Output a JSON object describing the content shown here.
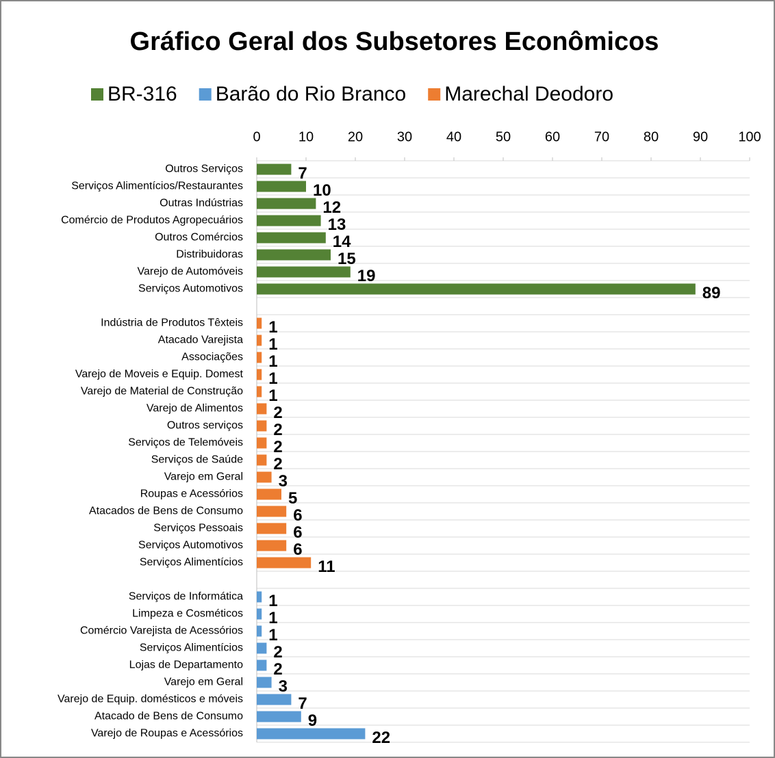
{
  "chart_data": {
    "type": "bar",
    "orientation": "horizontal",
    "title": "Gráfico Geral dos Subsetores Econômicos",
    "categories": [
      "Outros Serviços",
      "Serviços Alimentícios/Restaurantes",
      "Outras Indústrias",
      "Comércio de Produtos Agropecuários",
      "Outros Comércios",
      "Distribuidoras",
      "Varejo de Automóveis",
      "Serviços Automotivos",
      null,
      "Indústria de Produtos Têxteis",
      "Atacado Varejista",
      "Associações",
      "Varejo de Moveis e Equip. Domest",
      "Varejo de Material de Construção",
      "Varejo de Alimentos",
      "Outros serviços",
      "Serviços de Telemóveis",
      "Serviços de Saúde",
      "Varejo em Geral",
      "Roupas e Acessórios",
      "Atacados de Bens de Consumo",
      "Serviços Pessoais",
      "Serviços Automotivos",
      "Serviços Alimentícios",
      null,
      "Serviços de Informática",
      "Limpeza e Cosméticos",
      "Comércio Varejista de Acessórios",
      "Serviços Alimentícios",
      "Lojas de Departamento",
      "Varejo em Geral",
      "Varejo de Equip. domésticos e móveis",
      "Atacado de Bens de Consumo",
      "Varejo de Roupas e Acessórios"
    ],
    "series": [
      {
        "name": "BR-316",
        "color": "#548235",
        "values": [
          7,
          10,
          12,
          13,
          14,
          15,
          19,
          89,
          null,
          null,
          null,
          null,
          null,
          null,
          null,
          null,
          null,
          null,
          null,
          null,
          null,
          null,
          null,
          null,
          null,
          null,
          null,
          null,
          null,
          null,
          null,
          null,
          null,
          null
        ]
      },
      {
        "name": "Barão do Rio Branco",
        "color": "#5b9bd5",
        "values": [
          null,
          null,
          null,
          null,
          null,
          null,
          null,
          null,
          null,
          null,
          null,
          null,
          null,
          null,
          null,
          null,
          null,
          null,
          null,
          null,
          null,
          null,
          null,
          null,
          null,
          1,
          1,
          1,
          2,
          2,
          3,
          7,
          9,
          22
        ]
      },
      {
        "name": "Marechal Deodoro",
        "color": "#ed7d31",
        "values": [
          null,
          null,
          null,
          null,
          null,
          null,
          null,
          null,
          null,
          1,
          1,
          1,
          1,
          1,
          2,
          2,
          2,
          2,
          3,
          5,
          6,
          6,
          6,
          11,
          null,
          null,
          null,
          null,
          null,
          null,
          null,
          null,
          null,
          null
        ]
      }
    ],
    "xlim": [
      0,
      100
    ],
    "xticks": [
      0,
      10,
      20,
      30,
      40,
      50,
      60,
      70,
      80,
      90,
      100
    ],
    "legend": "top",
    "data_labels": true
  }
}
